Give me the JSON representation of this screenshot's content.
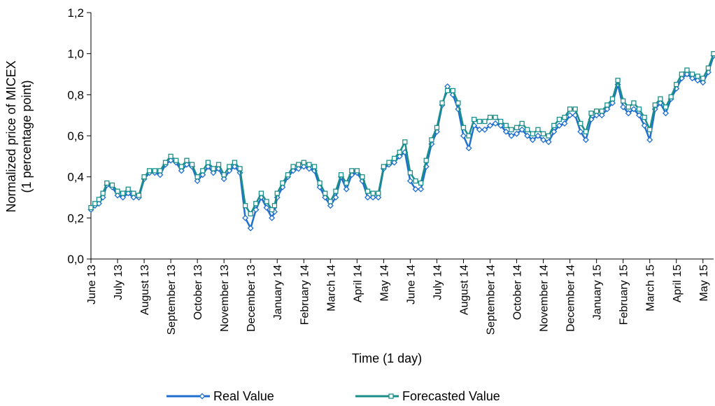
{
  "chart_data": {
    "type": "line",
    "title": "",
    "xlabel": "Time (1 day)",
    "ylabel_lines": [
      "Normalized price of MICEX",
      "(1 percentage point)"
    ],
    "ylim": [
      0,
      1.2
    ],
    "yticks": [
      0,
      0.2,
      0.4,
      0.6,
      0.8,
      1.0,
      1.2
    ],
    "ytick_labels": [
      "0,0",
      "0,2",
      "0,4",
      "0,6",
      "0,8",
      "1,0",
      "1,2"
    ],
    "x_range_months": [
      0,
      23.4
    ],
    "x_tick_positions": [
      0,
      1,
      2,
      3,
      4,
      5,
      6,
      7,
      8,
      9,
      10,
      11,
      12,
      13,
      14,
      15,
      16,
      17,
      18,
      19,
      20,
      21,
      22,
      23
    ],
    "x_tick_labels": [
      "June 13",
      "July 13",
      "August 13",
      "September 13",
      "October 13",
      "November 13",
      "December 13",
      "January 14",
      "February 14",
      "March 14",
      "April 14",
      "May 14",
      "June 14",
      "July 14",
      "August 14",
      "September 14",
      "October 14",
      "November 14",
      "December 14",
      "January 15",
      "February 15",
      "March 15",
      "April 15",
      "May 15"
    ],
    "grid": false,
    "legend_position": "bottom",
    "series": [
      {
        "name": "Real Value",
        "color": "#1f6fd1",
        "marker": "diamond",
        "x": [
          0,
          0.15,
          0.3,
          0.45,
          0.6,
          0.8,
          1.0,
          1.2,
          1.4,
          1.6,
          1.8,
          2.0,
          2.2,
          2.4,
          2.6,
          2.8,
          3.0,
          3.2,
          3.4,
          3.6,
          3.8,
          4.0,
          4.2,
          4.4,
          4.6,
          4.8,
          5.0,
          5.2,
          5.4,
          5.6,
          5.8,
          6.0,
          6.2,
          6.4,
          6.6,
          6.8,
          6.9,
          7.0,
          7.2,
          7.4,
          7.6,
          7.8,
          8.0,
          8.2,
          8.4,
          8.6,
          8.8,
          9.0,
          9.2,
          9.4,
          9.6,
          9.8,
          10.0,
          10.2,
          10.4,
          10.6,
          10.8,
          11.0,
          11.2,
          11.4,
          11.6,
          11.8,
          12.0,
          12.2,
          12.4,
          12.6,
          12.8,
          13.0,
          13.2,
          13.4,
          13.6,
          13.8,
          14.0,
          14.2,
          14.4,
          14.6,
          14.8,
          15.0,
          15.2,
          15.4,
          15.6,
          15.8,
          16.0,
          16.2,
          16.4,
          16.6,
          16.8,
          17.0,
          17.2,
          17.4,
          17.6,
          17.8,
          18.0,
          18.2,
          18.4,
          18.6,
          18.8,
          19.0,
          19.2,
          19.4,
          19.6,
          19.8,
          20.0,
          20.2,
          20.4,
          20.6,
          20.8,
          21.0,
          21.2,
          21.4,
          21.6,
          21.8,
          22.0,
          22.2,
          22.4,
          22.6,
          22.8,
          23.0,
          23.2,
          23.4
        ],
        "values": [
          0.24,
          0.26,
          0.27,
          0.3,
          0.36,
          0.35,
          0.31,
          0.3,
          0.32,
          0.3,
          0.3,
          0.39,
          0.42,
          0.42,
          0.41,
          0.46,
          0.48,
          0.47,
          0.43,
          0.46,
          0.45,
          0.38,
          0.41,
          0.45,
          0.42,
          0.44,
          0.39,
          0.43,
          0.45,
          0.42,
          0.2,
          0.15,
          0.24,
          0.3,
          0.25,
          0.2,
          0.23,
          0.3,
          0.35,
          0.4,
          0.43,
          0.44,
          0.45,
          0.44,
          0.43,
          0.35,
          0.3,
          0.26,
          0.3,
          0.4,
          0.34,
          0.41,
          0.42,
          0.38,
          0.3,
          0.3,
          0.3,
          0.44,
          0.46,
          0.47,
          0.5,
          0.52,
          0.38,
          0.34,
          0.34,
          0.45,
          0.56,
          0.62,
          0.75,
          0.84,
          0.8,
          0.73,
          0.6,
          0.54,
          0.65,
          0.63,
          0.63,
          0.65,
          0.66,
          0.65,
          0.62,
          0.6,
          0.61,
          0.63,
          0.6,
          0.58,
          0.6,
          0.58,
          0.57,
          0.62,
          0.65,
          0.66,
          0.7,
          0.7,
          0.62,
          0.58,
          0.68,
          0.7,
          0.7,
          0.73,
          0.76,
          0.85,
          0.74,
          0.71,
          0.73,
          0.7,
          0.65,
          0.58,
          0.73,
          0.76,
          0.71,
          0.78,
          0.83,
          0.88,
          0.9,
          0.88,
          0.87,
          0.86,
          0.91,
          0.99
        ]
      },
      {
        "name": "Forecasted Value",
        "color": "#1a8f8a",
        "marker": "square",
        "x": [
          0,
          0.15,
          0.3,
          0.45,
          0.6,
          0.8,
          1.0,
          1.2,
          1.4,
          1.6,
          1.8,
          2.0,
          2.2,
          2.4,
          2.6,
          2.8,
          3.0,
          3.2,
          3.4,
          3.6,
          3.8,
          4.0,
          4.2,
          4.4,
          4.6,
          4.8,
          5.0,
          5.2,
          5.4,
          5.6,
          5.8,
          6.0,
          6.2,
          6.4,
          6.6,
          6.8,
          6.9,
          7.0,
          7.2,
          7.4,
          7.6,
          7.8,
          8.0,
          8.2,
          8.4,
          8.6,
          8.8,
          9.0,
          9.2,
          9.4,
          9.6,
          9.8,
          10.0,
          10.2,
          10.4,
          10.6,
          10.8,
          11.0,
          11.2,
          11.4,
          11.6,
          11.8,
          12.0,
          12.2,
          12.4,
          12.6,
          12.8,
          13.0,
          13.2,
          13.4,
          13.6,
          13.8,
          14.0,
          14.2,
          14.4,
          14.6,
          14.8,
          15.0,
          15.2,
          15.4,
          15.6,
          15.8,
          16.0,
          16.2,
          16.4,
          16.6,
          16.8,
          17.0,
          17.2,
          17.4,
          17.6,
          17.8,
          18.0,
          18.2,
          18.4,
          18.6,
          18.8,
          19.0,
          19.2,
          19.4,
          19.6,
          19.8,
          20.0,
          20.2,
          20.4,
          20.6,
          20.8,
          21.0,
          21.2,
          21.4,
          21.6,
          21.8,
          22.0,
          22.2,
          22.4,
          22.6,
          22.8,
          23.0,
          23.2,
          23.4
        ],
        "values": [
          0.25,
          0.27,
          0.29,
          0.32,
          0.37,
          0.36,
          0.33,
          0.32,
          0.34,
          0.32,
          0.31,
          0.4,
          0.43,
          0.43,
          0.43,
          0.47,
          0.5,
          0.48,
          0.45,
          0.48,
          0.46,
          0.4,
          0.43,
          0.47,
          0.44,
          0.46,
          0.41,
          0.45,
          0.47,
          0.44,
          0.26,
          0.22,
          0.27,
          0.32,
          0.28,
          0.24,
          0.26,
          0.32,
          0.37,
          0.41,
          0.45,
          0.46,
          0.47,
          0.46,
          0.45,
          0.37,
          0.32,
          0.28,
          0.33,
          0.41,
          0.37,
          0.43,
          0.43,
          0.4,
          0.33,
          0.32,
          0.32,
          0.45,
          0.47,
          0.49,
          0.52,
          0.57,
          0.42,
          0.38,
          0.37,
          0.48,
          0.58,
          0.64,
          0.76,
          0.82,
          0.82,
          0.76,
          0.64,
          0.6,
          0.68,
          0.67,
          0.67,
          0.69,
          0.69,
          0.67,
          0.65,
          0.63,
          0.64,
          0.66,
          0.63,
          0.61,
          0.63,
          0.61,
          0.6,
          0.65,
          0.68,
          0.69,
          0.73,
          0.73,
          0.66,
          0.62,
          0.71,
          0.72,
          0.72,
          0.75,
          0.78,
          0.87,
          0.77,
          0.74,
          0.76,
          0.73,
          0.69,
          0.63,
          0.75,
          0.78,
          0.74,
          0.79,
          0.85,
          0.9,
          0.92,
          0.9,
          0.89,
          0.88,
          0.93,
          1.0
        ]
      }
    ]
  }
}
